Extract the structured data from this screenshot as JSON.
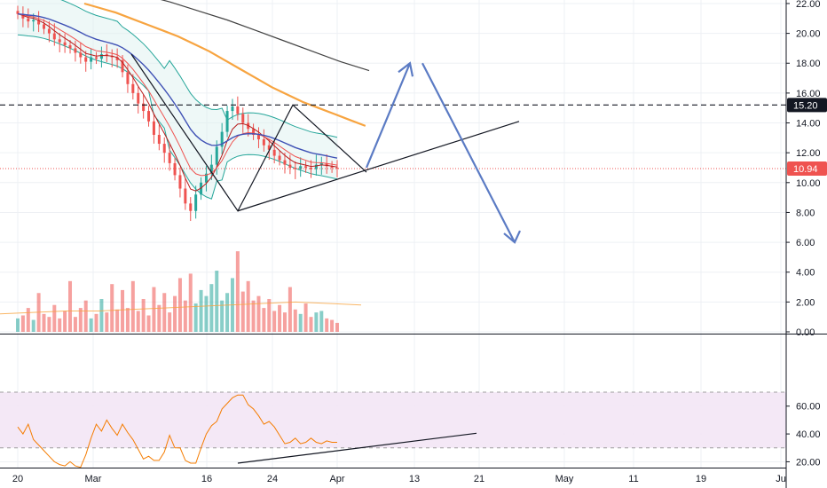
{
  "chart_data": {
    "type": "line",
    "price_axis": {
      "ticks": [
        "22.00",
        "20.00",
        "18.00",
        "16.00",
        "14.00",
        "12.00",
        "10.00",
        "8.00",
        "6.00",
        "4.00",
        "2.00",
        "0.00"
      ],
      "values": [
        22,
        20,
        18,
        16,
        14,
        12,
        10,
        8,
        6,
        4,
        2,
        0
      ]
    },
    "rsi_axis": {
      "ticks": [
        "60.00",
        "40.00",
        "20.00"
      ],
      "values": [
        60,
        40,
        20
      ],
      "upper_band": 70,
      "lower_band": 30
    },
    "time_axis": {
      "labels": [
        "20",
        "Mar",
        "16",
        "24",
        "Apr",
        "13",
        "21",
        "May",
        "11",
        "19",
        "Ju"
      ]
    },
    "markers": {
      "dashed_level": {
        "value": 15.2,
        "label": "15.20",
        "color": "#131722"
      },
      "last_price": {
        "value": 10.94,
        "label": "10.94",
        "color": "#ef5350"
      }
    },
    "colors": {
      "bollinger": "#26a69a",
      "bollinger_fill": "#e0f2f1",
      "ema_fast": "#ef5350",
      "ema_slow": "#3f51b5",
      "sma_orange": "#f7a440",
      "sma_long": "#424242",
      "candle_up": "#26a69a",
      "candle_down": "#ef5350",
      "projection": "#5b7bc4",
      "rsi_line": "#f57c00",
      "rsi_band": "#f3e5f5",
      "trendline": "#131722"
    }
  }
}
